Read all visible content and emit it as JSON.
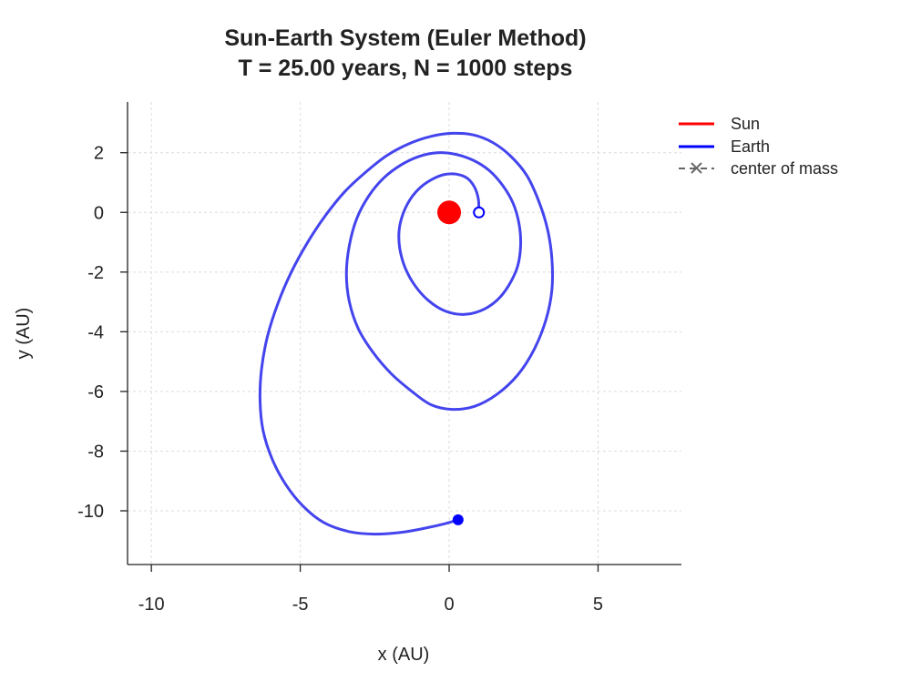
{
  "chart_data": {
    "type": "line",
    "title": "Sun-Earth System (Euler Method)",
    "subtitle": "T = 25.00 years, N = 1000 steps",
    "xlabel": "x (AU)",
    "ylabel": "y (AU)",
    "xlim": [
      -10.8,
      7.8
    ],
    "ylim": [
      -11.8,
      3.7
    ],
    "xticks": [
      -10,
      -5,
      0,
      5
    ],
    "yticks": [
      2,
      0,
      -2,
      -4,
      -6,
      -8,
      -10
    ],
    "grid": true,
    "legend_position": "top-right",
    "legend": [
      {
        "name": "Sun",
        "style": "line",
        "color": "#ff0000"
      },
      {
        "name": "Earth",
        "style": "line",
        "color": "#0000ff"
      },
      {
        "name": "center of mass",
        "style": "dashed-x",
        "color": "#666666"
      }
    ],
    "series": [
      {
        "name": "Earth",
        "color": "#4444ee",
        "points": [
          [
            1.0,
            0.0
          ],
          [
            0.98,
            0.45
          ],
          [
            0.85,
            0.85
          ],
          [
            0.6,
            1.15
          ],
          [
            0.25,
            1.28
          ],
          [
            -0.15,
            1.27
          ],
          [
            -0.55,
            1.12
          ],
          [
            -0.95,
            0.85
          ],
          [
            -1.3,
            0.45
          ],
          [
            -1.55,
            -0.05
          ],
          [
            -1.68,
            -0.6
          ],
          [
            -1.66,
            -1.2
          ],
          [
            -1.48,
            -1.85
          ],
          [
            -1.15,
            -2.45
          ],
          [
            -0.7,
            -2.95
          ],
          [
            -0.15,
            -3.3
          ],
          [
            0.45,
            -3.42
          ],
          [
            1.05,
            -3.3
          ],
          [
            1.6,
            -2.95
          ],
          [
            2.0,
            -2.45
          ],
          [
            2.3,
            -1.8
          ],
          [
            2.4,
            -1.1
          ],
          [
            2.35,
            -0.4
          ],
          [
            2.15,
            0.3
          ],
          [
            1.8,
            0.9
          ],
          [
            1.35,
            1.4
          ],
          [
            0.8,
            1.75
          ],
          [
            0.2,
            1.95
          ],
          [
            -0.4,
            2.0
          ],
          [
            -1.0,
            1.88
          ],
          [
            -1.6,
            1.6
          ],
          [
            -2.2,
            1.15
          ],
          [
            -2.7,
            0.55
          ],
          [
            -3.1,
            -0.2
          ],
          [
            -3.35,
            -1.1
          ],
          [
            -3.45,
            -2.05
          ],
          [
            -3.35,
            -3.0
          ],
          [
            -3.05,
            -3.9
          ],
          [
            -2.55,
            -4.7
          ],
          [
            -1.95,
            -5.4
          ],
          [
            -1.25,
            -6.0
          ],
          [
            -0.6,
            -6.45
          ],
          [
            0.1,
            -6.6
          ],
          [
            0.85,
            -6.5
          ],
          [
            1.6,
            -6.1
          ],
          [
            2.3,
            -5.45
          ],
          [
            2.85,
            -4.6
          ],
          [
            3.25,
            -3.6
          ],
          [
            3.45,
            -2.6
          ],
          [
            3.45,
            -1.55
          ],
          [
            3.3,
            -0.55
          ],
          [
            3.0,
            0.4
          ],
          [
            2.6,
            1.25
          ],
          [
            2.05,
            1.9
          ],
          [
            1.45,
            2.35
          ],
          [
            0.8,
            2.6
          ],
          [
            0.1,
            2.65
          ],
          [
            -0.6,
            2.55
          ],
          [
            -1.35,
            2.3
          ],
          [
            -2.1,
            1.9
          ],
          [
            -2.8,
            1.35
          ],
          [
            -3.5,
            0.7
          ],
          [
            -4.15,
            -0.1
          ],
          [
            -4.75,
            -1.0
          ],
          [
            -5.3,
            -2.0
          ],
          [
            -5.75,
            -3.05
          ],
          [
            -6.1,
            -4.15
          ],
          [
            -6.3,
            -5.25
          ],
          [
            -6.35,
            -6.3
          ],
          [
            -6.25,
            -7.3
          ],
          [
            -5.95,
            -8.25
          ],
          [
            -5.5,
            -9.1
          ],
          [
            -4.9,
            -9.85
          ],
          [
            -4.2,
            -10.4
          ],
          [
            -3.35,
            -10.7
          ],
          [
            -2.5,
            -10.78
          ],
          [
            -1.6,
            -10.72
          ],
          [
            -0.8,
            -10.58
          ],
          [
            -0.1,
            -10.42
          ],
          [
            0.3,
            -10.3
          ]
        ],
        "start": [
          1.0,
          0.0
        ],
        "end": [
          0.3,
          -10.3
        ]
      }
    ],
    "markers": [
      {
        "name": "Sun",
        "x": 0.0,
        "y": 0.0,
        "color": "#ff0000",
        "style": "filled"
      },
      {
        "name": "Earth start",
        "x": 1.0,
        "y": 0.0,
        "color": "#0000ff",
        "style": "hollow"
      },
      {
        "name": "Earth end",
        "x": 0.3,
        "y": -10.3,
        "color": "#0000ff",
        "style": "filled"
      }
    ]
  }
}
